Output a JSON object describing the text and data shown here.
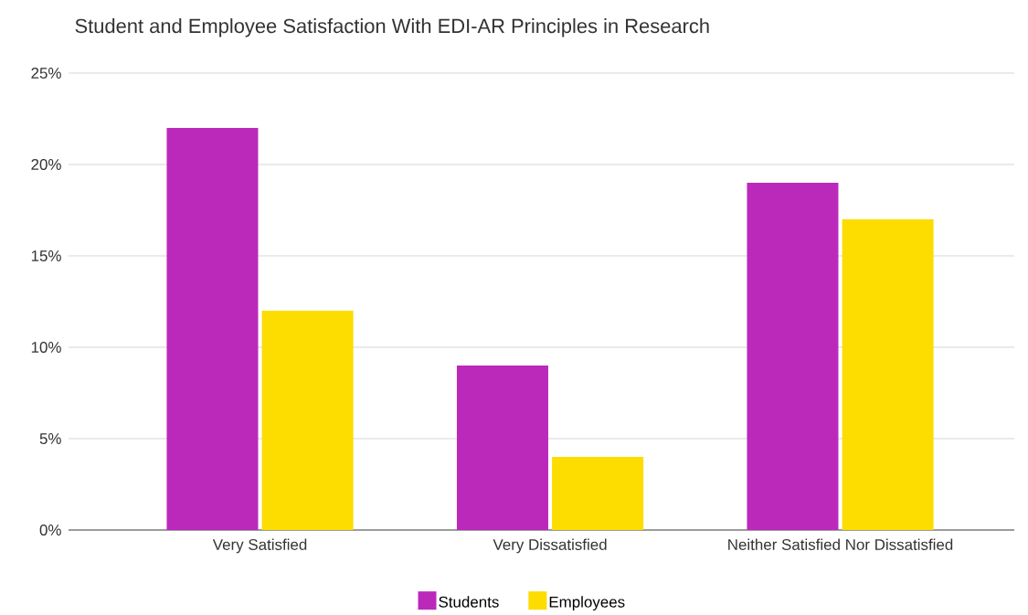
{
  "chart_data": {
    "type": "bar",
    "title": "Student and Employee Satisfaction With EDI-AR Principles in Research",
    "categories": [
      "Very Satisfied",
      "Very Dissatisfied",
      "Neither Satisfied Nor Dissatisfied"
    ],
    "series": [
      {
        "name": "Students",
        "color": "#bb29bb",
        "values": [
          22,
          9,
          19
        ]
      },
      {
        "name": "Employees",
        "color": "#fddc00",
        "values": [
          12,
          4,
          17
        ]
      }
    ],
    "ylim": [
      0,
      25
    ],
    "yticks": [
      {
        "value": 0,
        "label": "0%"
      },
      {
        "value": 5,
        "label": "5%"
      },
      {
        "value": 10,
        "label": "10%"
      },
      {
        "value": 15,
        "label": "15%"
      },
      {
        "value": 20,
        "label": "20%"
      },
      {
        "value": 25,
        "label": "25%"
      }
    ],
    "grid": "y",
    "legend": "bottom"
  }
}
